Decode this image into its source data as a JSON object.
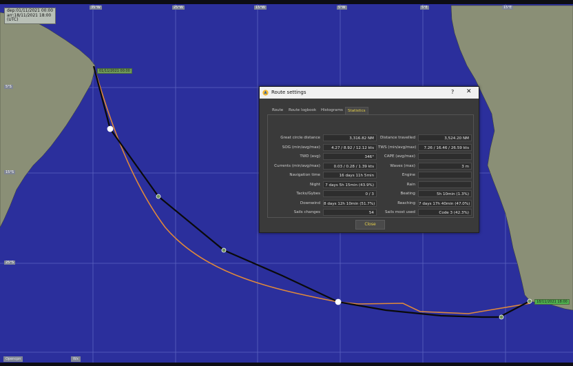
{
  "map": {
    "info_lines": [
      "dep:01/11/2021 00:00",
      "arr:18/11/2021 18:00",
      "(UTC)"
    ],
    "lon_labels": [
      "35°W",
      "25°W",
      "15°W",
      "5°W",
      "5°E",
      "15°E"
    ],
    "lat_labels": [
      "5°S",
      "15°S",
      "25°S"
    ],
    "start_label": "01/11/2021 00:00",
    "end_label": "18/11/2021 18:00",
    "bottom_buttons": [
      "Opencpn",
      "Wx"
    ],
    "colors": {
      "ocean": "#2b2f9c",
      "land": "#8a8f76",
      "grid": "#5d63c0",
      "route_primary": "#0a0a0a",
      "route_secondary": "#e0893a"
    }
  },
  "dialog": {
    "title": "Route settings",
    "help_label": "?",
    "close_label": "✕",
    "tabs": [
      "Route",
      "Route logbook",
      "Histograms",
      "Statistics"
    ],
    "active_tab": "Statistics",
    "rows": [
      {
        "left_label": "Great circle distance",
        "left_value": "3,316.82 NM",
        "right_label": "Distance travelled",
        "right_value": "3,524.20 NM"
      },
      {
        "left_label": "SOG (min/avg/max)",
        "left_value": "4.27 / 8.92 / 12.12 kts",
        "right_label": "TWS (min/avg/max)",
        "right_value": "7.26 / 16.46 / 26.59 kts"
      },
      {
        "left_label": "TWD (avg)",
        "left_value": "346°",
        "right_label": "CAPE (avg/max)",
        "right_value": ""
      },
      {
        "left_label": "Currents (min/avg/max)",
        "left_value": "0.03 / 0.28 / 1.39 kts",
        "right_label": "Waves (max)",
        "right_value": "3 m"
      },
      {
        "left_label": "Navigation time",
        "left_value": "16 days 11h 5min",
        "right_label": "Engine",
        "right_value": ""
      },
      {
        "left_label": "Night",
        "left_value": "7 days 5h 15min (43.9%)",
        "right_label": "Rain",
        "right_value": ""
      },
      {
        "left_label": "Tacks/Gybes",
        "left_value": "0 / 3",
        "right_label": "Beating",
        "right_value": "5h 10min (1.3%)"
      },
      {
        "left_label": "Downwind",
        "left_value": "8 days 12h 10min (51.7%)",
        "right_label": "Reaching",
        "right_value": "7 days 17h 40min (47.0%)"
      },
      {
        "left_label": "Sails changes",
        "left_value": "54",
        "right_label": "Sails most used",
        "right_value": "Code 3 (42.3%)"
      }
    ],
    "close_button": "Close"
  }
}
